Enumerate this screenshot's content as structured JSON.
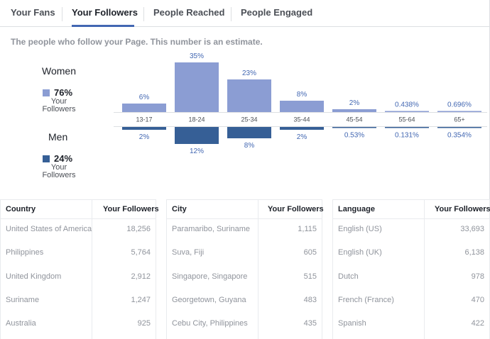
{
  "tabs": [
    {
      "label": "Your Fans"
    },
    {
      "label": "Your Followers",
      "active": true
    },
    {
      "label": "People Reached"
    },
    {
      "label": "People Engaged"
    }
  ],
  "subtitle": "The people who follow your Page. This number is an estimate.",
  "legend": {
    "women": {
      "title": "Women",
      "percent": "76%",
      "sub_line1": "Your",
      "sub_line2": "Followers",
      "color": "#8b9dd3"
    },
    "men": {
      "title": "Men",
      "percent": "24%",
      "sub_line1": "Your",
      "sub_line2": "Followers",
      "color": "#365f96"
    }
  },
  "chart_data": {
    "type": "bar",
    "categories": [
      "13-17",
      "18-24",
      "25-34",
      "35-44",
      "45-54",
      "55-64",
      "65+"
    ],
    "series": [
      {
        "name": "Women",
        "values": [
          6,
          35,
          23,
          8,
          2,
          0.438,
          0.696
        ],
        "labels": [
          "6%",
          "35%",
          "23%",
          "8%",
          "2%",
          "0.438%",
          "0.696%"
        ],
        "color": "#8b9dd3"
      },
      {
        "name": "Men",
        "values": [
          2,
          12,
          8,
          2,
          0.53,
          0.131,
          0.354
        ],
        "labels": [
          "2%",
          "12%",
          "8%",
          "2%",
          "0.53%",
          "0.131%",
          "0.354%"
        ],
        "color": "#365f96"
      }
    ]
  },
  "tables": {
    "country": {
      "header": "Country",
      "value_header": "Your Followers",
      "rows": [
        {
          "name": "United States of America",
          "value": "18,256"
        },
        {
          "name": "Philippines",
          "value": "5,764"
        },
        {
          "name": "United Kingdom",
          "value": "2,912"
        },
        {
          "name": "Suriname",
          "value": "1,247"
        },
        {
          "name": "Australia",
          "value": "925"
        }
      ]
    },
    "city": {
      "header": "City",
      "value_header": "Your Followers",
      "rows": [
        {
          "name": "Paramaribo, Suriname",
          "value": "1,115"
        },
        {
          "name": "Suva, Fiji",
          "value": "605"
        },
        {
          "name": "Singapore, Singapore",
          "value": "515"
        },
        {
          "name": "Georgetown, Guyana",
          "value": "483"
        },
        {
          "name": "Cebu City, Philippines",
          "value": "435"
        }
      ]
    },
    "language": {
      "header": "Language",
      "value_header": "Your Followers",
      "rows": [
        {
          "name": "English (US)",
          "value": "33,693"
        },
        {
          "name": "English (UK)",
          "value": "6,138"
        },
        {
          "name": "Dutch",
          "value": "978"
        },
        {
          "name": "French (France)",
          "value": "470"
        },
        {
          "name": "Spanish",
          "value": "422"
        }
      ]
    }
  }
}
